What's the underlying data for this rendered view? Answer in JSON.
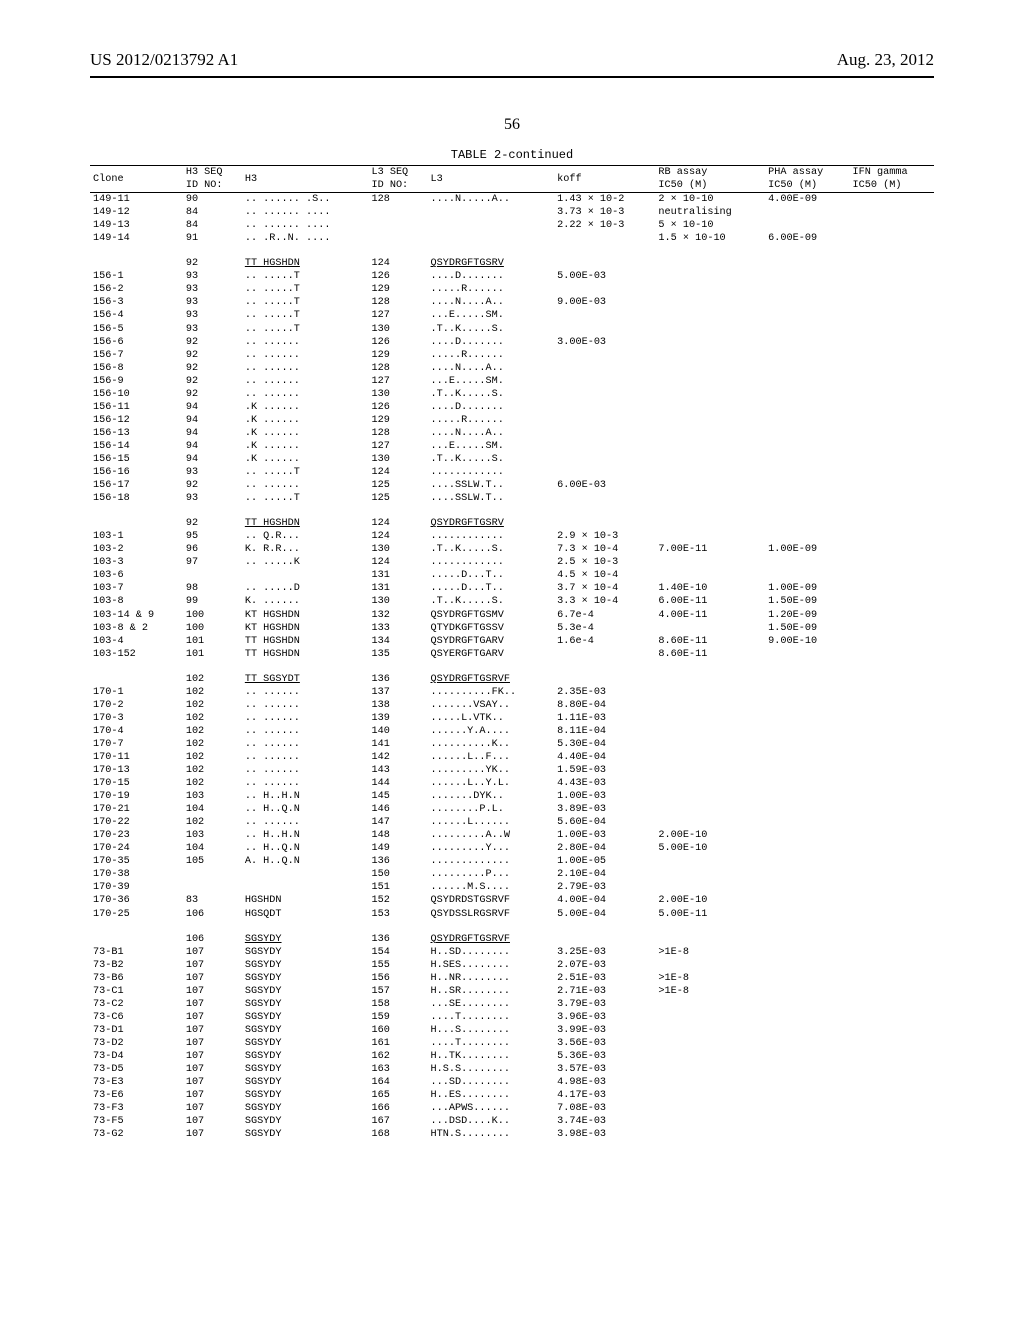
{
  "header_left": "US 2012/0213792 A1",
  "header_right": "Aug. 23, 2012",
  "page_number": "56",
  "table_title": "TABLE 2-continued",
  "columns": [
    "Clone",
    "H3 SEQ\nID NO:",
    "H3",
    "L3 SEQ\nID NO:",
    "L3",
    "koff",
    "RB assay\nIC50 (M)",
    "PHA assay\nIC50 (M)",
    "IFN gamma\nIC50 (M)"
  ],
  "groups": [
    {
      "header": null,
      "rows": [
        [
          "149-11",
          "90",
          ".. ...... .S..",
          "128",
          "....N.....A..",
          "1.43 × 10-2",
          "2 × 10-10",
          "4.00E-09",
          ""
        ],
        [
          "149-12",
          "84",
          ".. ...... ....",
          "",
          "",
          "3.73 × 10-3",
          "neutralising",
          "",
          ""
        ],
        [
          "149-13",
          "84",
          ".. ...... ....",
          "",
          "",
          "2.22 × 10-3",
          "5 × 10-10",
          "",
          ""
        ],
        [
          "149-14",
          "91",
          ".. .R..N. ....",
          "",
          "",
          "",
          "1.5 × 10-10",
          "6.00E-09",
          ""
        ]
      ]
    },
    {
      "header": [
        "",
        "92",
        "TT HGSHDN",
        "124",
        "QSYDRGFTGSRV",
        "",
        "",
        "",
        ""
      ],
      "rows": [
        [
          "156-1",
          "93",
          ".. .....T",
          "126",
          "....D.......",
          "5.00E-03",
          "",
          "",
          ""
        ],
        [
          "156-2",
          "93",
          ".. .....T",
          "129",
          ".....R......",
          "",
          "",
          "",
          ""
        ],
        [
          "156-3",
          "93",
          ".. .....T",
          "128",
          "....N....A..",
          "9.00E-03",
          "",
          "",
          ""
        ],
        [
          "156-4",
          "93",
          ".. .....T",
          "127",
          "...E.....SM.",
          "",
          "",
          "",
          ""
        ],
        [
          "156-5",
          "93",
          ".. .....T",
          "130",
          ".T..K.....S.",
          "",
          "",
          "",
          ""
        ],
        [
          "156-6",
          "92",
          ".. ......",
          "126",
          "....D.......",
          "3.00E-03",
          "",
          "",
          ""
        ],
        [
          "156-7",
          "92",
          ".. ......",
          "129",
          ".....R......",
          "",
          "",
          "",
          ""
        ],
        [
          "156-8",
          "92",
          ".. ......",
          "128",
          "....N....A..",
          "",
          "",
          "",
          ""
        ],
        [
          "156-9",
          "92",
          ".. ......",
          "127",
          "...E.....SM.",
          "",
          "",
          "",
          ""
        ],
        [
          "156-10",
          "92",
          ".. ......",
          "130",
          ".T..K.....S.",
          "",
          "",
          "",
          ""
        ],
        [
          "156-11",
          "94",
          ".K ......",
          "126",
          "....D.......",
          "",
          "",
          "",
          ""
        ],
        [
          "156-12",
          "94",
          ".K ......",
          "129",
          ".....R......",
          "",
          "",
          "",
          ""
        ],
        [
          "156-13",
          "94",
          ".K ......",
          "128",
          "....N....A..",
          "",
          "",
          "",
          ""
        ],
        [
          "156-14",
          "94",
          ".K ......",
          "127",
          "...E.....SM.",
          "",
          "",
          "",
          ""
        ],
        [
          "156-15",
          "94",
          ".K ......",
          "130",
          ".T..K.....S.",
          "",
          "",
          "",
          ""
        ],
        [
          "156-16",
          "93",
          ".. .....T",
          "124",
          "............",
          "",
          "",
          "",
          ""
        ],
        [
          "156-17",
          "92",
          ".. ......",
          "125",
          "....SSLW.T..",
          "6.00E-03",
          "",
          "",
          ""
        ],
        [
          "156-18",
          "93",
          ".. .....T",
          "125",
          "....SSLW.T..",
          "",
          "",
          "",
          ""
        ]
      ]
    },
    {
      "header": [
        "",
        "92",
        "TT HGSHDN",
        "124",
        "QSYDRGFTGSRV",
        "",
        "",
        "",
        ""
      ],
      "rows": [
        [
          "103-1",
          "95",
          ".. Q.R...",
          "124",
          "............",
          "2.9 × 10-3",
          "",
          "",
          ""
        ],
        [
          "103-2",
          "96",
          "K. R.R...",
          "130",
          ".T..K.....S.",
          "7.3 × 10-4",
          "7.00E-11",
          "1.00E-09",
          ""
        ],
        [
          "103-3",
          "97",
          ".. .....K",
          "124",
          "............",
          "2.5 × 10-3",
          "",
          "",
          ""
        ],
        [
          "103-6",
          "",
          "",
          "131",
          ".....D...T..",
          "4.5 × 10-4",
          "",
          "",
          ""
        ],
        [
          "103-7",
          "98",
          ".. .....D",
          "131",
          ".....D...T..",
          "3.7 × 10-4",
          "1.40E-10",
          "1.00E-09",
          ""
        ],
        [
          "103-8",
          "99",
          "K. ......",
          "130",
          ".T..K.....S.",
          "3.3 × 10-4",
          "6.00E-11",
          "1.50E-09",
          ""
        ],
        [
          "103-14 & 9",
          "100",
          "KT HGSHDN",
          "132",
          "QSYDRGFTGSMV",
          "6.7e-4",
          "4.00E-11",
          "1.20E-09",
          ""
        ],
        [
          "103-8 & 2",
          "100",
          "KT HGSHDN",
          "133",
          "QTYDKGFTGSSV",
          "5.3e-4",
          "",
          "1.50E-09",
          ""
        ],
        [
          "103-4",
          "101",
          "TT HGSHDN",
          "134",
          "QSYDRGFTGARV",
          "1.6e-4",
          "8.60E-11",
          "9.00E-10",
          ""
        ],
        [
          "103-152",
          "101",
          "TT HGSHDN",
          "135",
          "QSYERGFTGARV",
          "",
          "8.60E-11",
          "",
          ""
        ]
      ]
    },
    {
      "header": [
        "",
        "102",
        "TT SGSYDT",
        "136",
        "QSYDRGFTGSRVF",
        "",
        "",
        "",
        ""
      ],
      "rows": [
        [
          "170-1",
          "102",
          ".. ......",
          "137",
          "..........FK..",
          "2.35E-03",
          "",
          "",
          ""
        ],
        [
          "170-2",
          "102",
          ".. ......",
          "138",
          ".......VSAY..",
          "8.80E-04",
          "",
          "",
          ""
        ],
        [
          "170-3",
          "102",
          ".. ......",
          "139",
          ".....L.VTK..",
          "1.11E-03",
          "",
          "",
          ""
        ],
        [
          "170-4",
          "102",
          ".. ......",
          "140",
          "......Y.A....",
          "8.11E-04",
          "",
          "",
          ""
        ],
        [
          "170-7",
          "102",
          ".. ......",
          "141",
          "..........K..",
          "5.30E-04",
          "",
          "",
          ""
        ],
        [
          "170-11",
          "102",
          ".. ......",
          "142",
          "......L..F...",
          "4.40E-04",
          "",
          "",
          ""
        ],
        [
          "170-13",
          "102",
          ".. ......",
          "143",
          ".........YK..",
          "1.59E-03",
          "",
          "",
          ""
        ],
        [
          "170-15",
          "102",
          ".. ......",
          "144",
          "......L..Y.L.",
          "4.43E-03",
          "",
          "",
          ""
        ],
        [
          "170-19",
          "103",
          ".. H..H.N",
          "145",
          ".......DYK..",
          "1.00E-03",
          "",
          "",
          ""
        ],
        [
          "170-21",
          "104",
          ".. H..Q.N",
          "146",
          "........P.L.",
          "3.89E-03",
          "",
          "",
          ""
        ],
        [
          "170-22",
          "102",
          ".. ......",
          "147",
          "......L......",
          "5.60E-04",
          "",
          "",
          ""
        ],
        [
          "170-23",
          "103",
          ".. H..H.N",
          "148",
          ".........A..W",
          "1.00E-03",
          "2.00E-10",
          "",
          ""
        ],
        [
          "170-24",
          "104",
          ".. H..Q.N",
          "149",
          ".........Y...",
          "2.80E-04",
          "5.00E-10",
          "",
          ""
        ],
        [
          "170-35",
          "105",
          "A. H..Q.N",
          "136",
          ".............",
          "1.00E-05",
          "",
          "",
          ""
        ],
        [
          "170-38",
          "",
          "",
          "150",
          ".........P...",
          "2.10E-04",
          "",
          "",
          ""
        ],
        [
          "170-39",
          "",
          "",
          "151",
          "......M.S....",
          "2.79E-03",
          "",
          "",
          ""
        ],
        [
          "170-36",
          "83",
          "HGSHDN",
          "152",
          "QSYDRDSTGSRVF",
          "4.00E-04",
          "2.00E-10",
          "",
          ""
        ],
        [
          "170-25",
          "106",
          "HGSQDT",
          "153",
          "QSYDSSLRGSRVF",
          "5.00E-04",
          "5.00E-11",
          "",
          ""
        ]
      ]
    },
    {
      "header": [
        "",
        "106",
        "SGSYDY",
        "136",
        "QSYDRGFTGSRVF",
        "",
        "",
        "",
        ""
      ],
      "rows": [
        [
          "73-B1",
          "107",
          "SGSYDY",
          "154",
          "H..SD........",
          "3.25E-03",
          ">1E-8",
          "",
          ""
        ],
        [
          "73-B2",
          "107",
          "SGSYDY",
          "155",
          "H.SES........",
          "2.07E-03",
          "",
          "",
          ""
        ],
        [
          "73-B6",
          "107",
          "SGSYDY",
          "156",
          "H..NR........",
          "2.51E-03",
          ">1E-8",
          "",
          ""
        ],
        [
          "73-C1",
          "107",
          "SGSYDY",
          "157",
          "H..SR........",
          "2.71E-03",
          ">1E-8",
          "",
          ""
        ],
        [
          "73-C2",
          "107",
          "SGSYDY",
          "158",
          "...SE........",
          "3.79E-03",
          "",
          "",
          ""
        ],
        [
          "73-C6",
          "107",
          "SGSYDY",
          "159",
          "....T........",
          "3.96E-03",
          "",
          "",
          ""
        ],
        [
          "73-D1",
          "107",
          "SGSYDY",
          "160",
          "H...S........",
          "3.99E-03",
          "",
          "",
          ""
        ],
        [
          "73-D2",
          "107",
          "SGSYDY",
          "161",
          "....T........",
          "3.56E-03",
          "",
          "",
          ""
        ],
        [
          "73-D4",
          "107",
          "SGSYDY",
          "162",
          "H..TK........",
          "5.36E-03",
          "",
          "",
          ""
        ],
        [
          "73-D5",
          "107",
          "SGSYDY",
          "163",
          "H.S.S........",
          "3.57E-03",
          "",
          "",
          ""
        ],
        [
          "73-E3",
          "107",
          "SGSYDY",
          "164",
          "...SD........",
          "4.98E-03",
          "",
          "",
          ""
        ],
        [
          "73-E6",
          "107",
          "SGSYDY",
          "165",
          "H..ES........",
          "4.17E-03",
          "",
          "",
          ""
        ],
        [
          "73-F3",
          "107",
          "SGSYDY",
          "166",
          "...APWS......",
          "7.08E-03",
          "",
          "",
          ""
        ],
        [
          "73-F5",
          "107",
          "SGSYDY",
          "167",
          "...DSD....K..",
          "3.74E-03",
          "",
          "",
          ""
        ],
        [
          "73-G2",
          "107",
          "SGSYDY",
          "168",
          "HTN.S........",
          "3.98E-03",
          "",
          "",
          ""
        ]
      ]
    }
  ]
}
